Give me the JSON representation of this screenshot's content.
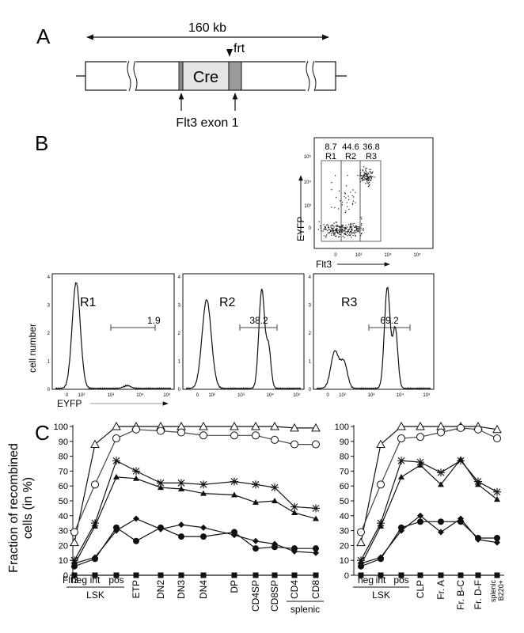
{
  "panel_a": {
    "letter": "A",
    "size_label": "160 kb",
    "frt_label": "frt",
    "cre_label": "Cre",
    "exon_label": "Flt3 exon 1"
  },
  "panel_b": {
    "letter": "B",
    "dot_plot": {
      "y_label": "EYFP",
      "x_label": "Flt3",
      "gates": [
        {
          "name": "R1",
          "pct": "8.7"
        },
        {
          "name": "R2",
          "pct": "44.6"
        },
        {
          "name": "R3",
          "pct": "36.8"
        }
      ],
      "ticks": [
        "0",
        "10³",
        "10⁴",
        "10⁵"
      ]
    },
    "histograms": [
      {
        "gate": "R1",
        "marker_pct": "1.9"
      },
      {
        "gate": "R2",
        "marker_pct": "38.2"
      },
      {
        "gate": "R3",
        "marker_pct": "69.2"
      }
    ],
    "hist_y_label": "cell number",
    "hist_x_label": "EYFP",
    "hist_x_ticks": [
      "0",
      "10²",
      "10³",
      "10⁴",
      "10⁵"
    ],
    "hist_y_ticks": [
      "0",
      "1",
      "2",
      "3",
      "4"
    ]
  },
  "panel_c": {
    "letter": "C",
    "y_label_line1": "Fraction of recombined",
    "y_label_line2": "cells (in %)",
    "flt3_label": "Flt3",
    "lsk_label": "LSK",
    "splenic_label": "splenic",
    "splenic_b220_line1": "splenic",
    "splenic_b220_line2": "B220+"
  },
  "chart_data": [
    {
      "type": "line",
      "title": "",
      "xlabel": "",
      "ylabel": "Fraction of recombined cells (in %)",
      "ylim": [
        0,
        100
      ],
      "yticks": [
        0,
        10,
        20,
        30,
        40,
        50,
        60,
        70,
        80,
        90,
        100
      ],
      "categories": [
        "neg",
        "int",
        "pos",
        "ETP",
        "DN2",
        "DN3",
        "DN4",
        "DP",
        "CD4SP",
        "CD8SP",
        "CD4",
        "CD8"
      ],
      "series": [
        {
          "marker": "open-triangle",
          "values": [
            22,
            88,
            100,
            100,
            100,
            100,
            100,
            100,
            100,
            100,
            99,
            99
          ]
        },
        {
          "marker": "open-circle",
          "values": [
            29,
            61,
            92,
            98,
            97,
            96,
            94,
            94,
            94,
            91,
            88,
            88
          ]
        },
        {
          "marker": "star",
          "values": [
            10,
            35,
            77,
            70,
            62,
            62,
            61,
            63,
            61,
            59,
            46,
            45
          ]
        },
        {
          "marker": "filled-triangle",
          "values": [
            7,
            33,
            66,
            65,
            59,
            58,
            55,
            54,
            49,
            50,
            42,
            38
          ]
        },
        {
          "marker": "filled-diamond",
          "values": [
            8,
            12,
            30,
            38,
            31,
            34,
            32,
            27,
            23,
            21,
            16,
            15
          ]
        },
        {
          "marker": "filled-circle",
          "values": [
            6,
            11,
            32,
            23,
            32,
            26,
            26,
            29,
            18,
            19,
            18,
            18
          ]
        },
        {
          "marker": "filled-square",
          "values": [
            0,
            0,
            0,
            0,
            0,
            0,
            0,
            0,
            0,
            0,
            0,
            0
          ]
        }
      ]
    },
    {
      "type": "line",
      "title": "",
      "xlabel": "",
      "ylabel": "",
      "ylim": [
        0,
        100
      ],
      "yticks": [
        0,
        10,
        20,
        30,
        40,
        50,
        60,
        70,
        80,
        90,
        100
      ],
      "categories": [
        "neg",
        "int",
        "pos",
        "CLP",
        "Fr. A",
        "Fr. B-C",
        "Fr. D-F",
        "splenic B220+"
      ],
      "series": [
        {
          "marker": "open-triangle",
          "values": [
            22,
            88,
            100,
            100,
            100,
            100,
            100,
            98
          ]
        },
        {
          "marker": "open-circle",
          "values": [
            29,
            61,
            92,
            93,
            96,
            99,
            98,
            92
          ]
        },
        {
          "marker": "star",
          "values": [
            10,
            35,
            77,
            76,
            69,
            77,
            63,
            56
          ]
        },
        {
          "marker": "filled-triangle",
          "values": [
            7,
            33,
            66,
            74,
            61,
            78,
            61,
            51
          ]
        },
        {
          "marker": "filled-diamond",
          "values": [
            8,
            12,
            30,
            40,
            29,
            38,
            24,
            22
          ]
        },
        {
          "marker": "filled-circle",
          "values": [
            6,
            11,
            32,
            36,
            36,
            36,
            25,
            25
          ]
        },
        {
          "marker": "filled-square",
          "values": [
            0,
            0,
            0,
            0,
            0,
            0,
            0,
            0
          ]
        }
      ]
    }
  ]
}
